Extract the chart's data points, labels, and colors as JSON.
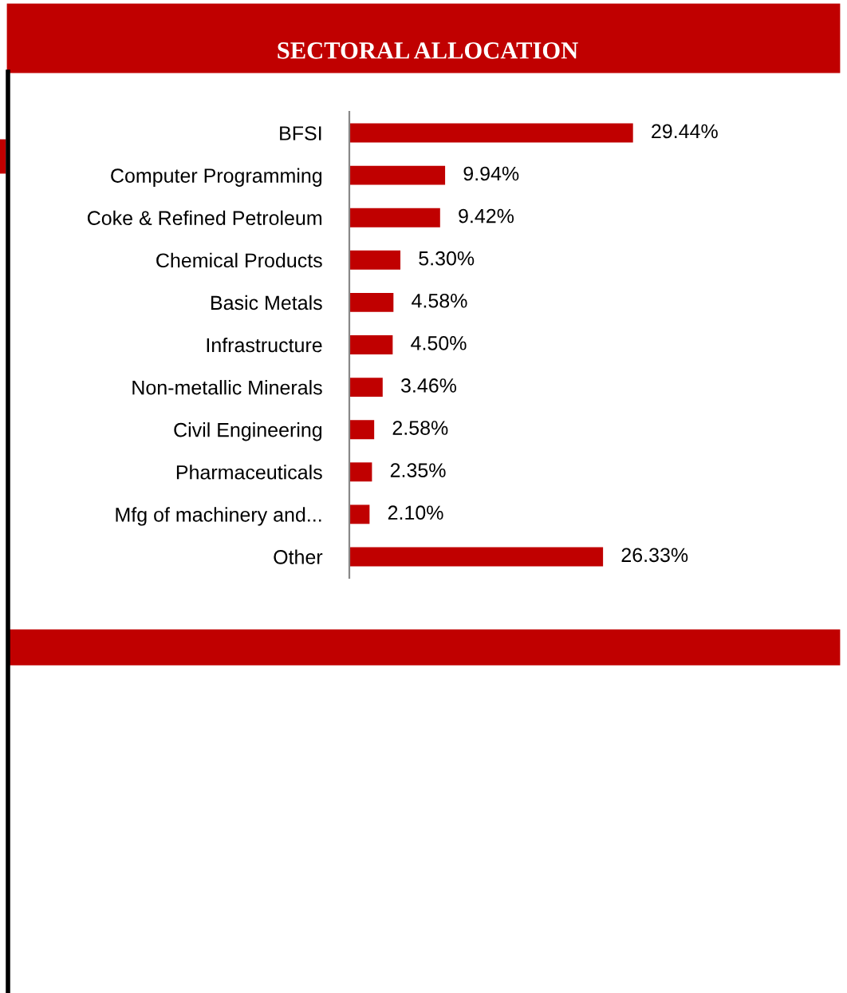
{
  "chart_data": {
    "type": "bar",
    "orientation": "horizontal",
    "title": "SECTORAL ALLOCATION",
    "categories": [
      "BFSI",
      "Computer Programming",
      "Coke & Refined Petroleum",
      "Chemical Products",
      "Basic Metals",
      "Infrastructure",
      "Non-metallic Minerals",
      "Civil Engineering",
      "Pharmaceuticals",
      "Mfg of machinery and...",
      "Other"
    ],
    "values": [
      29.44,
      9.94,
      9.42,
      5.3,
      4.58,
      4.5,
      3.46,
      2.58,
      2.35,
      2.1,
      26.33
    ],
    "value_labels": [
      "29.44%",
      "9.94%",
      "9.42%",
      "5.30%",
      "4.58%",
      "4.50%",
      "3.46%",
      "2.58%",
      "2.35%",
      "2.10%",
      "26.33%"
    ],
    "color": "#c00000",
    "grid": false,
    "legend": false
  }
}
